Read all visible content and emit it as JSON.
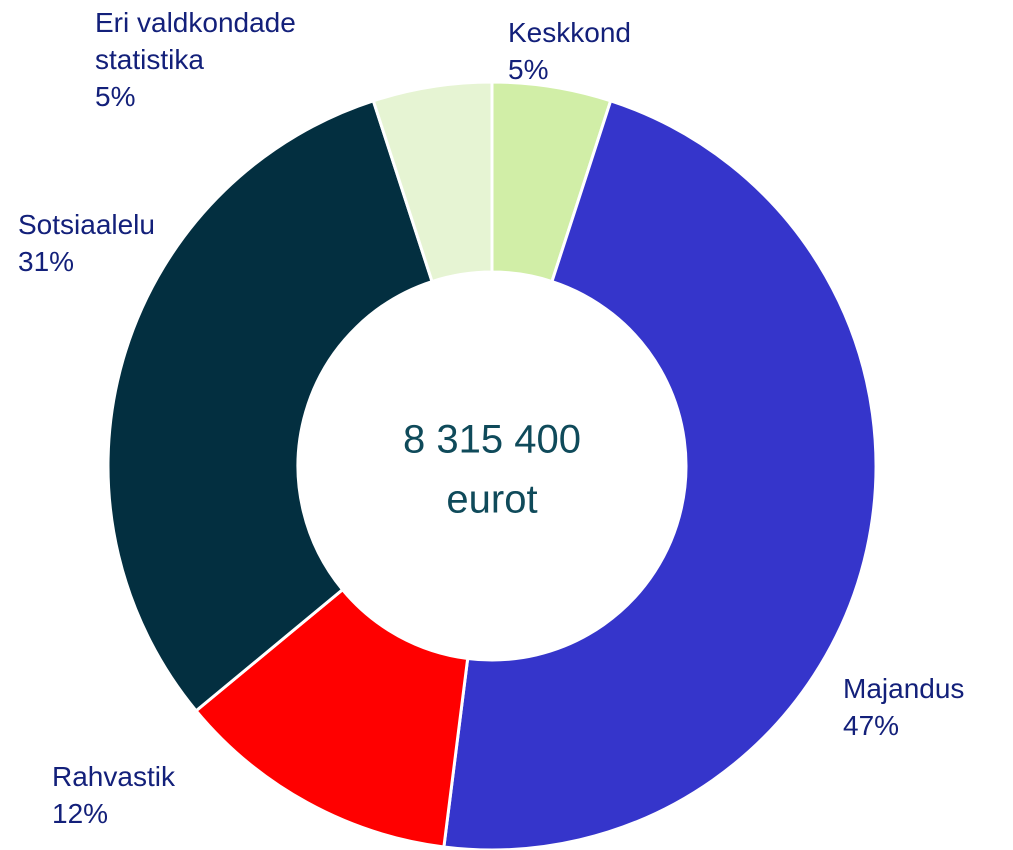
{
  "chart_data": {
    "type": "donut",
    "categories": [
      "Keskkond",
      "Majandus",
      "Rahvastik",
      "Sotsiaalelu",
      "Eri valdkondade statistika"
    ],
    "values": [
      5,
      47,
      12,
      31,
      5
    ],
    "value_labels": [
      "5%",
      "47%",
      "12%",
      "31%",
      "5%"
    ],
    "colors": [
      "#d1eea7",
      "#3535cb",
      "#ff0000",
      "#032f40",
      "#e6f4d3"
    ],
    "center_label": [
      "8 315 400",
      "eurot"
    ]
  }
}
